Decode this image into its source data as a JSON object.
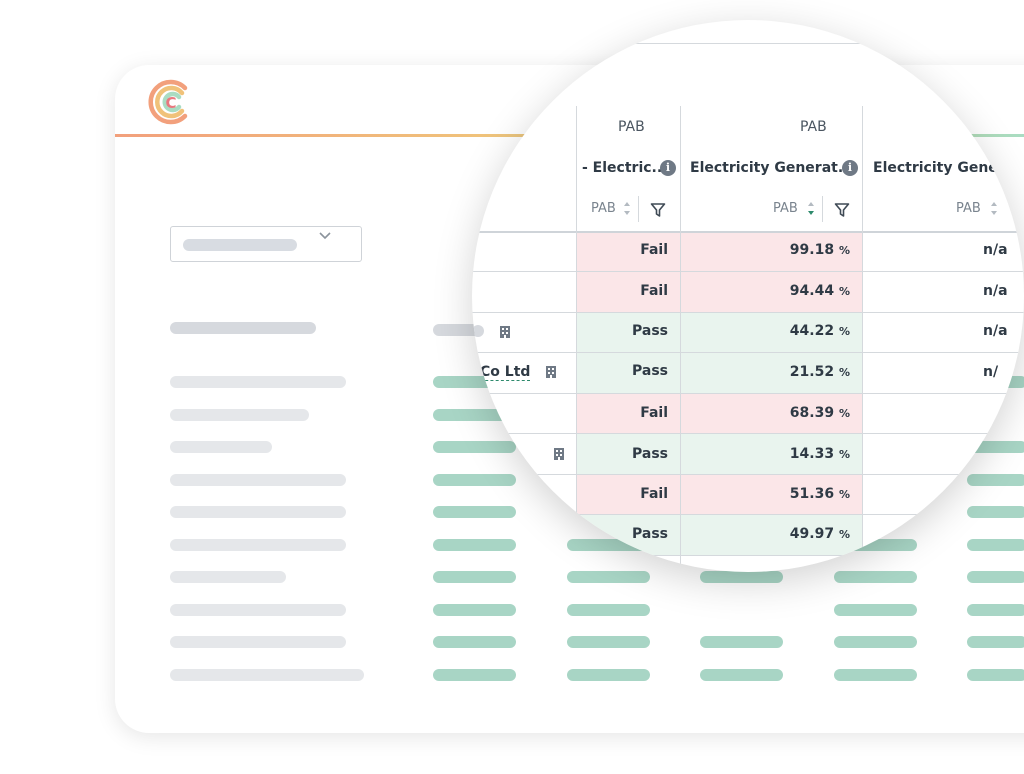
{
  "logo": {
    "letter": "C",
    "colors": [
      "#f2a07c",
      "#f0c27a",
      "#a9dcc2",
      "#e8787f"
    ]
  },
  "accent_colors": {
    "pass_bg": "#e9f4ee",
    "fail_bg": "#fbe6e8",
    "placeholder_teal": "#a8d5c5"
  },
  "table": {
    "columns": [
      {
        "top_label": "PAB",
        "name": "- Electric...",
        "sub_label": "PAB"
      },
      {
        "top_label": "PAB",
        "name": "Electricity Generat...",
        "sub_label": "PAB"
      },
      {
        "top_label": "",
        "name": "Electricity Gene",
        "sub_label": "PAB"
      }
    ],
    "company_fragment": "Co Ltd",
    "rows": [
      {
        "status": "Fail",
        "value": "99.18",
        "unit": "%",
        "third": "n/a"
      },
      {
        "status": "Fail",
        "value": "94.44",
        "unit": "%",
        "third": "n/a"
      },
      {
        "status": "Pass",
        "value": "44.22",
        "unit": "%",
        "third": "n/a"
      },
      {
        "status": "Pass",
        "value": "21.52",
        "unit": "%",
        "third": "n/"
      },
      {
        "status": "Fail",
        "value": "68.39",
        "unit": "%",
        "third": ""
      },
      {
        "status": "Pass",
        "value": "14.33",
        "unit": "%",
        "third": ""
      },
      {
        "status": "Fail",
        "value": "51.36",
        "unit": "%",
        "third": ""
      },
      {
        "status": "Pass",
        "value": "49.97",
        "unit": "%",
        "third": ""
      }
    ]
  }
}
